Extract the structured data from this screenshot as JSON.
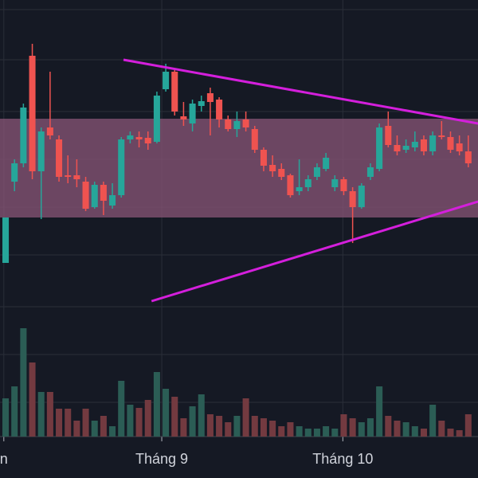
{
  "chart_data": {
    "type": "candlestick",
    "xlim": [
      -0.63,
      53.09
    ],
    "xticks": [
      {
        "value": -0.2,
        "label": "n"
      },
      {
        "value": 17.55,
        "label": "Tháng 9"
      },
      {
        "value": 37.9,
        "label": "Tháng 10"
      }
    ],
    "ylim": [
      0,
      400
    ],
    "ygrid": [
      388,
      325,
      260,
      200,
      140,
      80,
      15
    ],
    "volume_lim": [
      0,
      150
    ],
    "volume_grid": [
      103,
      43
    ],
    "up_color": "#26a69a",
    "down_color": "#ef5350",
    "volume_up_color": "#2b5d55",
    "volume_down_color": "#733a40",
    "open": [
      70,
      172,
      195,
      330,
      185,
      240,
      225,
      180,
      180,
      172,
      140,
      168,
      142,
      155,
      225,
      228,
      227,
      222,
      288,
      310,
      254,
      245,
      267,
      283,
      275,
      250,
      238,
      250,
      238,
      212,
      193,
      188,
      180,
      160,
      165,
      178,
      188,
      165,
      175,
      160,
      140,
      178,
      188,
      242,
      218,
      212,
      215,
      225,
      210,
      230,
      228,
      220,
      210
    ],
    "close": [
      127,
      195,
      265,
      185,
      235,
      230,
      178,
      178,
      175,
      138,
      168,
      148,
      155,
      225,
      230,
      225,
      220,
      280,
      310,
      260,
      250,
      270,
      273,
      272,
      250,
      238,
      248,
      240,
      212,
      192,
      185,
      178,
      155,
      165,
      175,
      190,
      202,
      175,
      160,
      140,
      167,
      190,
      240,
      218,
      210,
      217,
      222,
      210,
      230,
      228,
      212,
      210,
      195
    ],
    "high": [
      127,
      200,
      270,
      345,
      240,
      310,
      230,
      205,
      200,
      178,
      172,
      172,
      170,
      228,
      235,
      235,
      235,
      285,
      320,
      312,
      272,
      275,
      280,
      290,
      278,
      255,
      260,
      260,
      242,
      215,
      205,
      195,
      182,
      200,
      180,
      195,
      208,
      180,
      178,
      165,
      170,
      195,
      245,
      260,
      230,
      225,
      235,
      230,
      235,
      248,
      235,
      230,
      230
    ],
    "low": [
      70,
      160,
      190,
      175,
      125,
      225,
      172,
      170,
      165,
      135,
      138,
      130,
      138,
      152,
      220,
      215,
      212,
      220,
      285,
      255,
      242,
      235,
      260,
      230,
      240,
      235,
      228,
      235,
      208,
      185,
      178,
      174,
      152,
      155,
      160,
      174,
      185,
      160,
      155,
      95,
      138,
      174,
      185,
      215,
      205,
      208,
      210,
      205,
      205,
      225,
      208,
      205,
      190
    ],
    "volume": [
      48,
      63,
      136,
      93,
      56,
      56,
      35,
      35,
      20,
      35,
      20,
      26,
      13,
      70,
      40,
      36,
      46,
      81,
      60,
      50,
      23,
      38,
      53,
      28,
      26,
      18,
      26,
      48,
      26,
      23,
      20,
      13,
      18,
      13,
      10,
      10,
      13,
      10,
      28,
      23,
      18,
      23,
      63,
      26,
      20,
      18,
      13,
      10,
      40,
      20,
      10,
      8,
      28
    ],
    "band": {
      "low": 127,
      "high": 251,
      "color": "#8a5577"
    },
    "trendlines": [
      {
        "x": [
          13.25,
          53.1
        ],
        "y": [
          325,
          245
        ]
      },
      {
        "x": [
          16.4,
          53.1
        ],
        "y": [
          22,
          147
        ]
      }
    ],
    "trendline_color": "#d41fdc"
  }
}
